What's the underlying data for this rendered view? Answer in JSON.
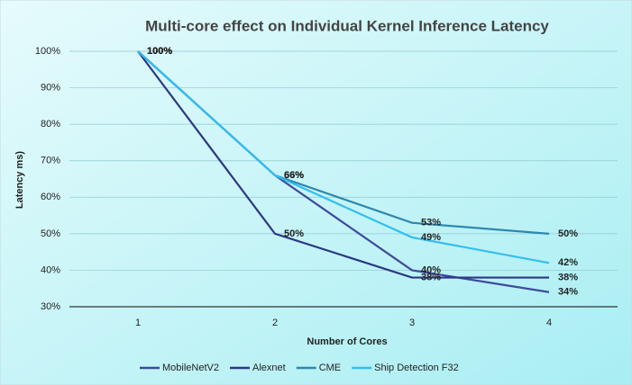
{
  "chart_data": {
    "type": "line",
    "title": "Multi-core effect on Individual Kernel Inference Latency",
    "x_label": "Number of Cores",
    "y_label": "Latency ms)",
    "categories": [
      "1",
      "2",
      "3",
      "4"
    ],
    "series": [
      {
        "name": "MobileNetV2",
        "color": "#3f4a9c",
        "values": [
          100,
          66,
          40,
          34
        ],
        "value_labels": [
          "100%",
          "66%",
          "40%",
          "34%"
        ]
      },
      {
        "name": "Alexnet",
        "color": "#2d3784",
        "values": [
          100,
          50,
          38,
          38
        ],
        "value_labels": [
          "100%",
          "50%",
          "38%",
          "38%"
        ]
      },
      {
        "name": "CME",
        "color": "#2e88ae",
        "values": [
          100,
          66,
          53,
          50
        ],
        "value_labels": [
          "100%",
          "66%",
          "53%",
          "50%"
        ]
      },
      {
        "name": "Ship Detection F32",
        "color": "#33bdf0",
        "values": [
          100,
          66,
          49,
          42
        ],
        "value_labels": [
          "100%",
          "66%",
          "49%",
          "42%"
        ]
      }
    ],
    "ylim": [
      30,
      100
    ],
    "yticks": [
      {
        "value": 30,
        "label": "30%"
      },
      {
        "value": 40,
        "label": "40%"
      },
      {
        "value": 50,
        "label": "50%"
      },
      {
        "value": 60,
        "label": "60%"
      },
      {
        "value": 70,
        "label": "70%"
      },
      {
        "value": 80,
        "label": "80%"
      },
      {
        "value": 90,
        "label": "90%"
      },
      {
        "value": 100,
        "label": "100%"
      }
    ],
    "grid": true,
    "legend": "bottom"
  }
}
